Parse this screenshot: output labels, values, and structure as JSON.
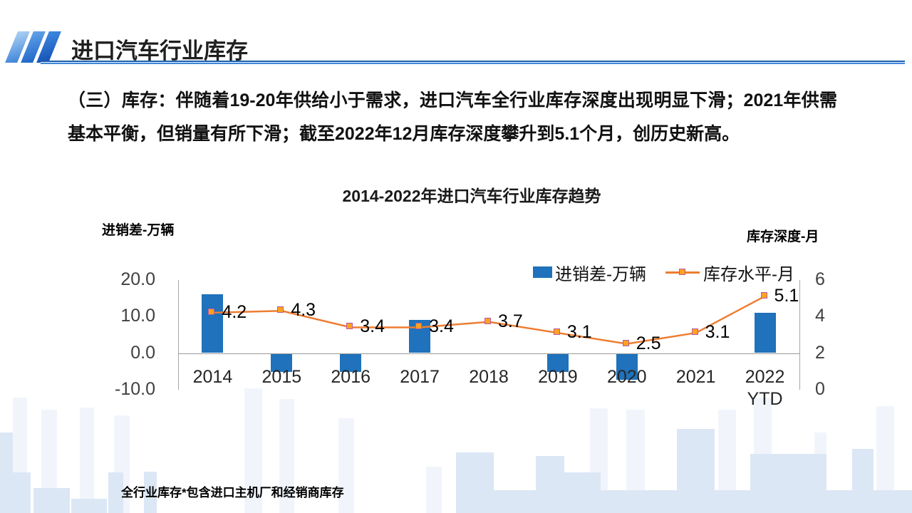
{
  "header": {
    "title": "进口汽车行业库存"
  },
  "intro": {
    "text": "（三）库存：伴随着19-20年供给小于需求，进口汽车全行业库存深度出现明显下滑；2021年供需基本平衡，但销量有所下滑；截至2022年12月库存深度攀升到5.1个月，创历史新高。"
  },
  "footnote": {
    "text": "全行业库存*包含进口主机厂和经销商库存"
  },
  "chart_data": {
    "type": "bar",
    "title": "2014-2022年进口汽车行业库存趋势",
    "categories": [
      "2014",
      "2015",
      "2016",
      "2017",
      "2018",
      "2019",
      "2020",
      "2021",
      "2022\nYTD"
    ],
    "series": [
      {
        "name": "进销差-万辆",
        "type": "bar",
        "axis": "left",
        "color": "#1f72bb",
        "values": [
          16,
          -5,
          -5,
          9,
          0,
          -5,
          -7,
          0,
          11
        ]
      },
      {
        "name": "库存水平-月",
        "type": "line",
        "axis": "right",
        "color": "#ed7d31",
        "marker_fill": "#ffa21e",
        "marker_border": "#b55ba5",
        "values": [
          4.2,
          4.3,
          3.4,
          3.4,
          3.7,
          3.1,
          2.5,
          3.1,
          5.1
        ],
        "labels": [
          "4.2",
          "4.3",
          "3.4",
          "3.4",
          "3.7",
          "3.1",
          "2.5",
          "3.1",
          "5.1"
        ]
      }
    ],
    "left_axis": {
      "title": "进销差-万辆",
      "ticks": [
        20,
        10,
        0,
        -10
      ],
      "tick_labels": [
        "20.0",
        "10.0",
        "0.0",
        "-10.0"
      ],
      "range": [
        -10,
        20
      ]
    },
    "right_axis": {
      "title": "库存深度-月",
      "ticks": [
        6,
        4,
        2,
        0
      ],
      "tick_labels": [
        "6",
        "4",
        "2",
        "0"
      ],
      "range": [
        0,
        6
      ]
    },
    "legend": [
      "进销差-万辆",
      "库存水平-月"
    ],
    "gridlines": false
  }
}
